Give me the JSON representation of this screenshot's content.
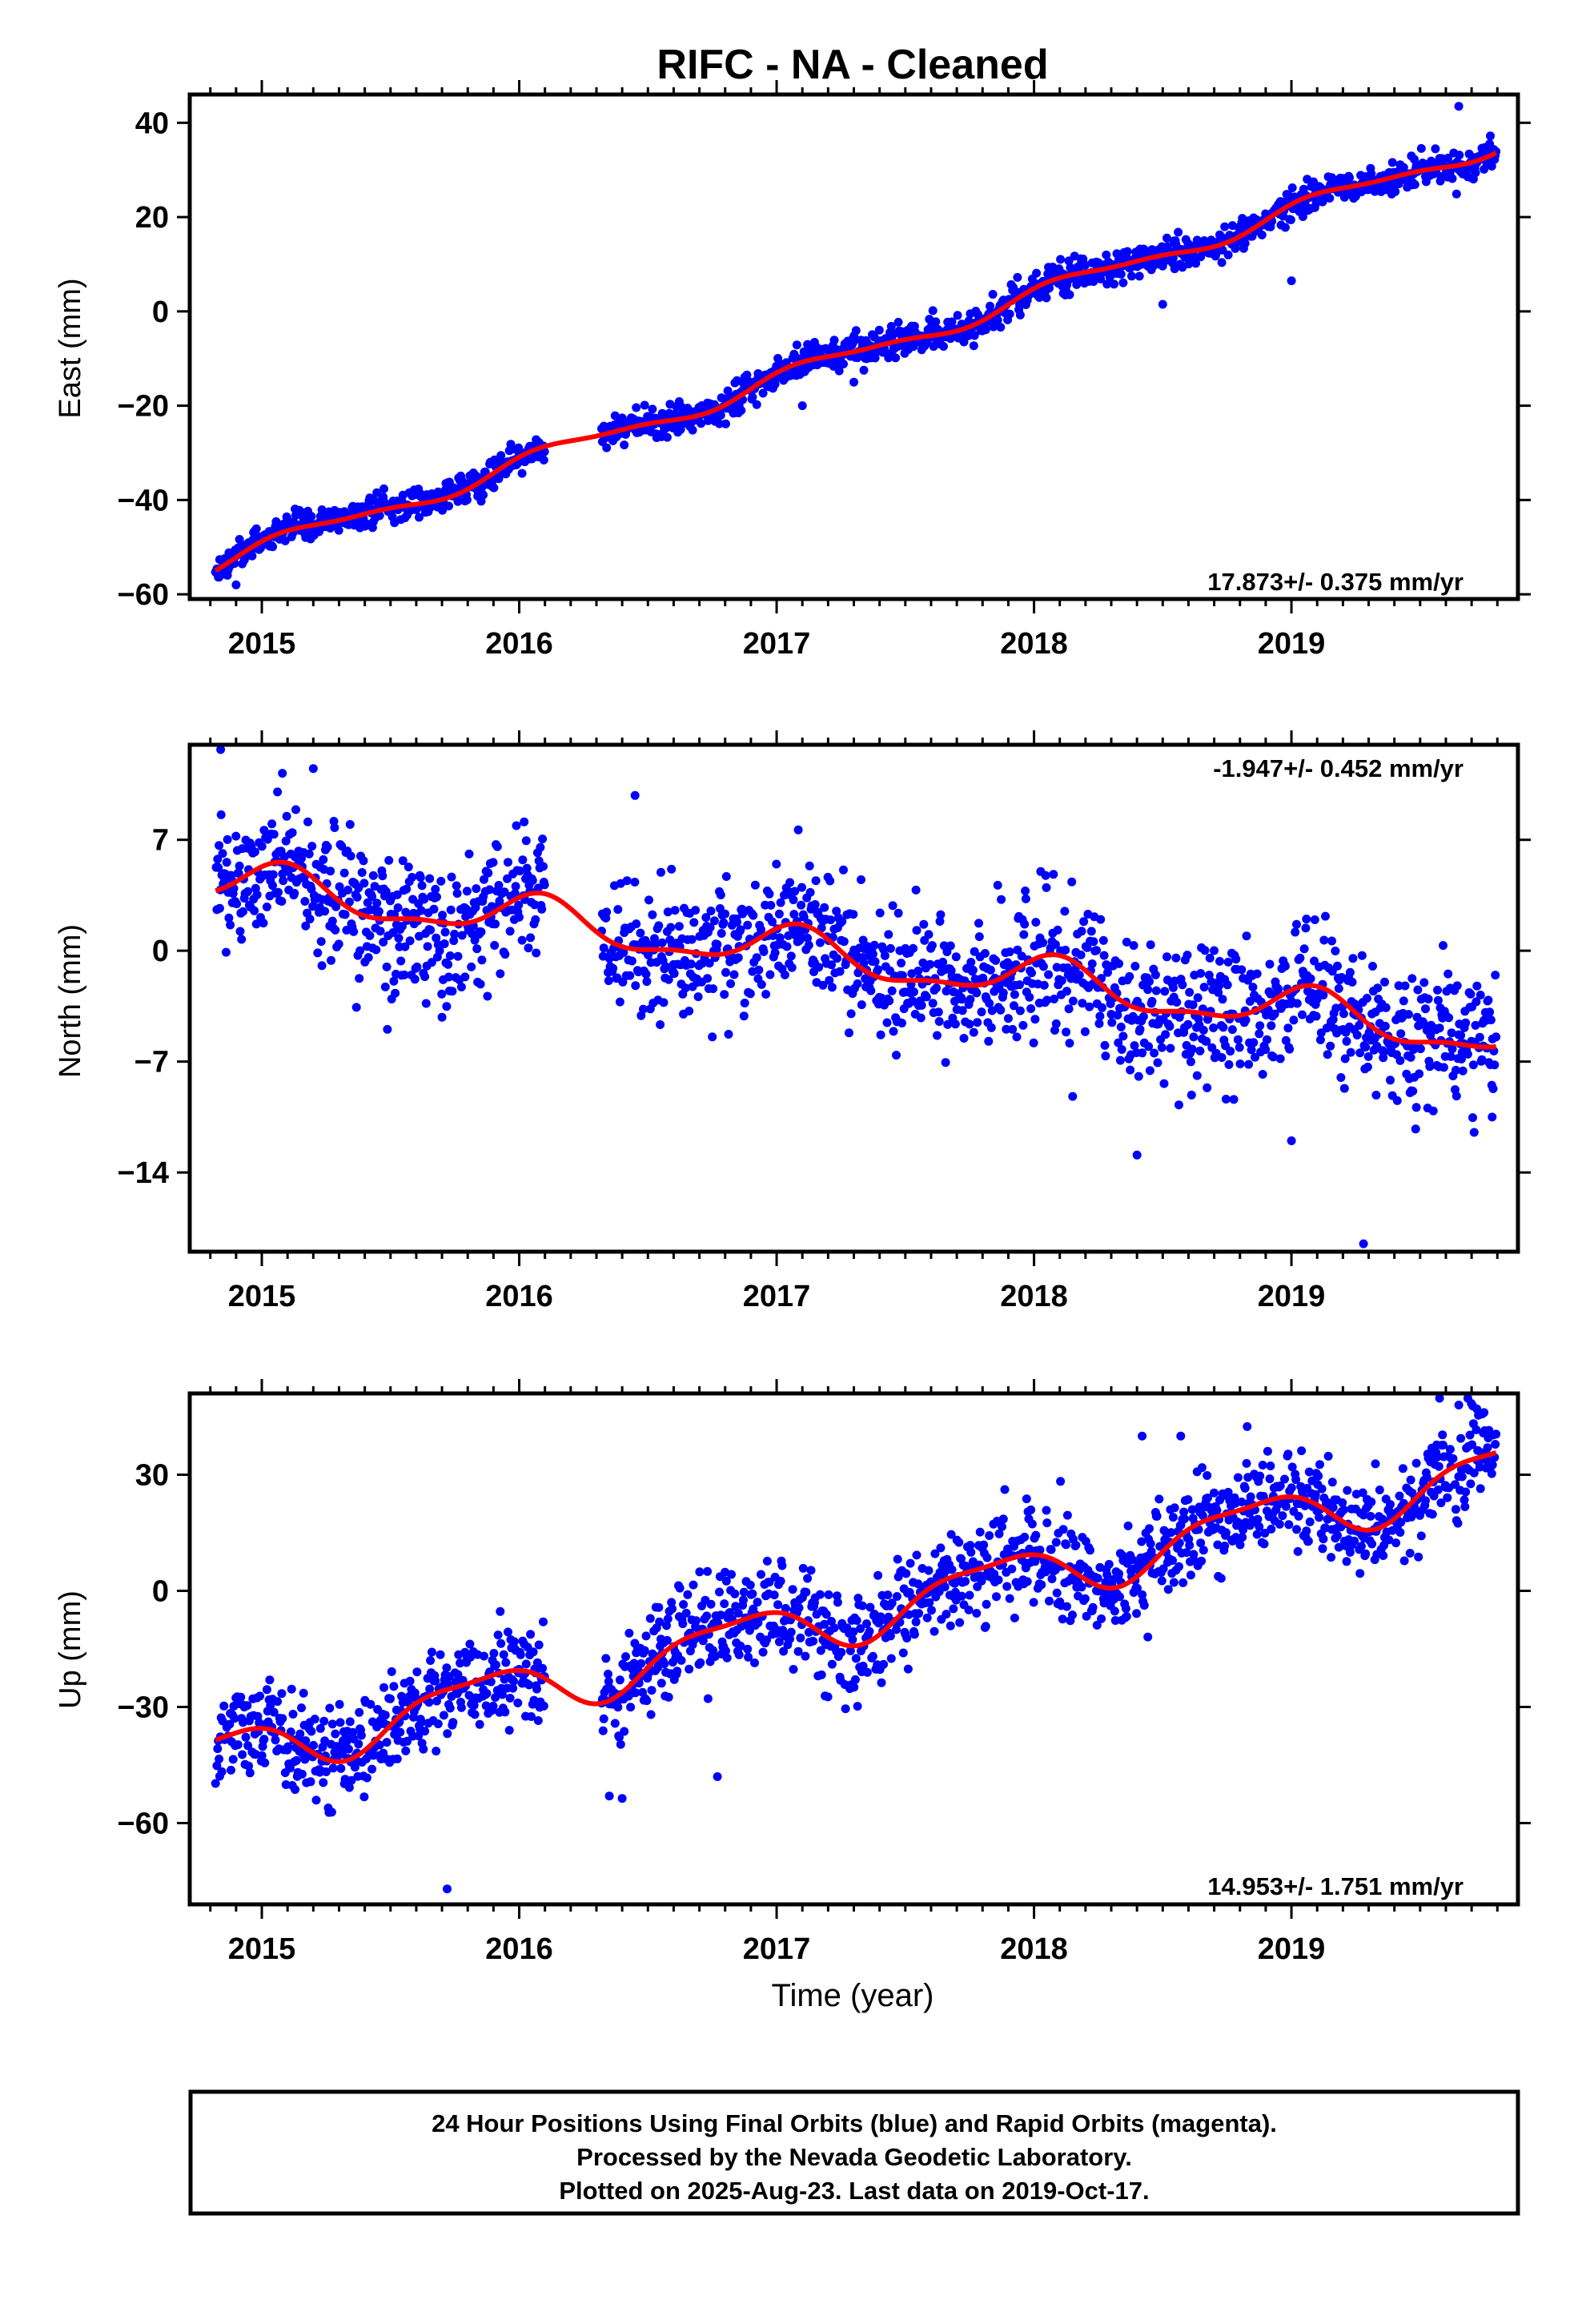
{
  "title": "RIFC  - NA - Cleaned",
  "xlabel": "Time (year)",
  "footer": {
    "line1": "24 Hour Positions Using Final Orbits (blue) and Rapid Orbits (magenta).",
    "line2": "Processed by the Nevada Geodetic Laboratory.",
    "line3": "Plotted on 2025-Aug-23. Last data on 2019-Oct-17."
  },
  "colors": {
    "points": "#0000ff",
    "fit": "#ff0000",
    "frame": "#000000"
  },
  "chart_data": [
    {
      "type": "scatter",
      "ylabel": "East (mm)",
      "rate": "17.873+/- 0.375 mm/yr",
      "xlim": [
        2014.72,
        2019.88
      ],
      "ylim": [
        -61,
        46
      ],
      "yticks": [
        -60,
        -40,
        -20,
        0,
        20,
        40
      ],
      "ytick_labels": [
        "−60",
        "−40",
        "−20",
        "0",
        "20",
        "40"
      ],
      "xticks": [
        2015,
        2016,
        2017,
        2018,
        2019
      ],
      "grid": false,
      "series": [
        {
          "fit_model": {
            "t0": 2014.82,
            "y0": -53.5,
            "rate": 17.873,
            "annual_amp": 1.8,
            "annual_phase": 0.55,
            "semiannual_amp": 0.6,
            "semiannual_phase": 1.3
          },
          "noise_sd": 1.6,
          "gaps": [
            [
              2016.1,
              2016.32
            ]
          ],
          "outliers": [
            [
              2014.9,
              -58
            ],
            [
              2017.1,
              -20
            ],
            [
              2017.3,
              -15
            ],
            [
              2017.55,
              -6
            ],
            [
              2017.75,
              -4
            ],
            [
              2018.5,
              1.5
            ],
            [
              2019.0,
              6.5
            ],
            [
              2019.65,
              43.5
            ]
          ]
        }
      ]
    },
    {
      "type": "scatter",
      "ylabel": "North (mm)",
      "rate": "-1.947+/- 0.452 mm/yr",
      "xlim": [
        2014.72,
        2019.88
      ],
      "ylim": [
        -19,
        13
      ],
      "yticks": [
        -14,
        -7,
        0,
        7
      ],
      "ytick_labels": [
        "−14",
        "−7",
        "0",
        "7"
      ],
      "xticks": [
        2015,
        2016,
        2017,
        2018,
        2019
      ],
      "grid": false,
      "series": [
        {
          "fit_model": {
            "t0": 2014.82,
            "y0": 4.3,
            "rate": -1.947,
            "annual_amp": 1.3,
            "annual_phase": 1.1,
            "semiannual_amp": 0.5,
            "semiannual_phase": 0.4
          },
          "noise_sd": 2.1,
          "gaps": [
            [
              2016.1,
              2016.32
            ]
          ],
          "outliers": [
            [
              2014.84,
              12.8
            ],
            [
              2015.08,
              11.2
            ],
            [
              2015.2,
              11.5
            ],
            [
              2016.45,
              9.8
            ],
            [
              2015.7,
              -4.2
            ],
            [
              2018.15,
              -9.2
            ],
            [
              2018.4,
              -12.9
            ],
            [
              2019.0,
              -12
            ],
            [
              2019.28,
              -18.5
            ],
            [
              2019.78,
              -10.5
            ]
          ]
        }
      ]
    },
    {
      "type": "scatter",
      "ylabel": "Up (mm)",
      "rate": "14.953+/- 1.751 mm/yr",
      "xlim": [
        2014.72,
        2019.88
      ],
      "ylim": [
        -81,
        51
      ],
      "yticks": [
        -60,
        -30,
        0,
        30
      ],
      "ytick_labels": [
        "−60",
        "−30",
        "0",
        "30"
      ],
      "xticks": [
        2015,
        2016,
        2017,
        2018,
        2019
      ],
      "grid": false,
      "series": [
        {
          "fit_model": {
            "t0": 2014.82,
            "y0": -43,
            "rate": 14.953,
            "annual_amp": 6.5,
            "annual_phase": 2.6,
            "semiannual_amp": 2.0,
            "semiannual_phase": 0.8
          },
          "noise_sd": 6.8,
          "gaps": [
            [
              2016.1,
              2016.32
            ]
          ],
          "outliers": [
            [
              2015.72,
              -77
            ],
            [
              2016.77,
              -48
            ],
            [
              2016.35,
              -53
            ],
            [
              2018.42,
              40
            ],
            [
              2018.57,
              40
            ],
            [
              2019.65,
              48
            ],
            [
              2019.72,
              47
            ]
          ]
        }
      ]
    }
  ]
}
